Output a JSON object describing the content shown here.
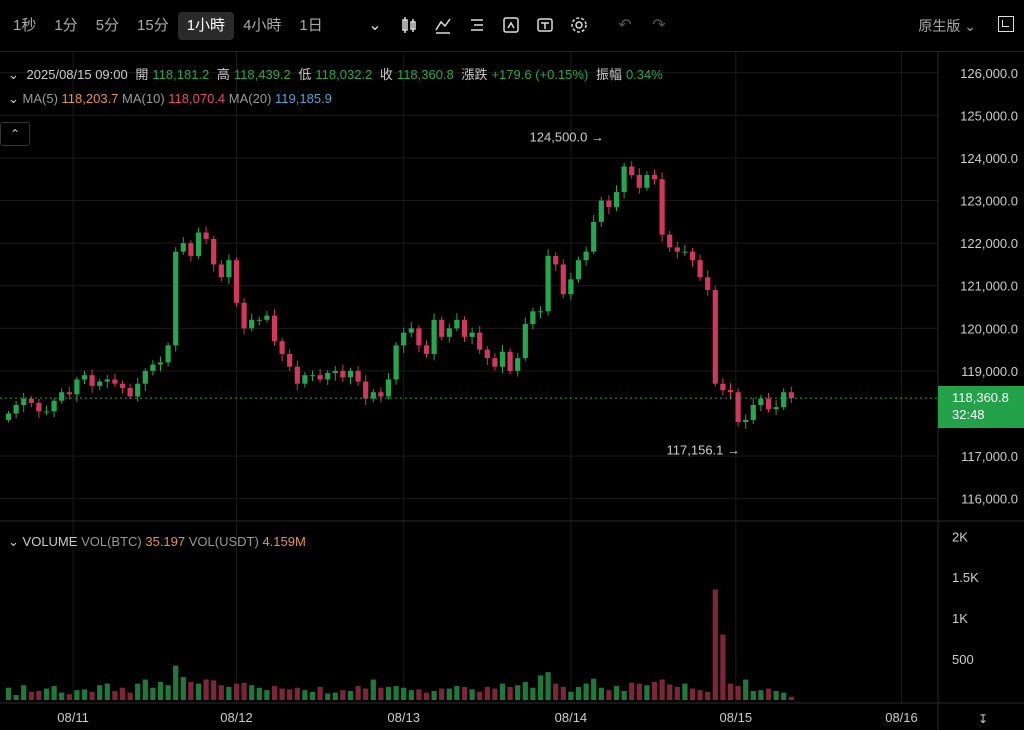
{
  "toolbar": {
    "timeframes": [
      "1秒",
      "1分",
      "5分",
      "15分",
      "1小時",
      "4小時",
      "1日"
    ],
    "active_timeframe": "1小時",
    "mode_label": "原生版"
  },
  "info": {
    "date": "2025/08/15 09:00",
    "open_label": "開",
    "open": "118,181.2",
    "high_label": "高",
    "high": "118,439.2",
    "low_label": "低",
    "low": "118,032.2",
    "close_label": "收",
    "close": "118,360.8",
    "change_label": "漲跌",
    "change": "+179.6 (+0.15%)",
    "amplitude_label": "振幅",
    "amplitude": "0.34%"
  },
  "ma": {
    "ma5_label": "MA(5)",
    "ma5": "118,203.7",
    "ma10_label": "MA(10)",
    "ma10": "118,070.4",
    "ma20_label": "MA(20)",
    "ma20": "119,185.9"
  },
  "volume": {
    "title": "VOLUME",
    "btc_label": "VOL(BTC)",
    "btc": "35.197",
    "usdt_label": "VOL(USDT)",
    "usdt": "4.159M"
  },
  "price_tag": {
    "price": "118,360.8",
    "countdown": "32:48"
  },
  "colors": {
    "up": "#25a750",
    "down": "#d2375d",
    "up_vol": "#1f7a3a",
    "down_vol": "#7e2639"
  },
  "chart_data": {
    "type": "candlestick",
    "x_ticks": [
      "08/11",
      "08/12",
      "08/13",
      "08/14",
      "08/15",
      "08/16"
    ],
    "price_ticks": [
      "126,000.0",
      "125,000.0",
      "124,000.0",
      "123,000.0",
      "122,000.0",
      "121,000.0",
      "120,000.0",
      "119,000.0",
      "117,000.0",
      "116,000.0"
    ],
    "ylim": [
      115500,
      126300
    ],
    "volume_ticks": [
      "2K",
      "1.5K",
      "1K",
      "500"
    ],
    "volume_ylim": [
      0,
      2150
    ],
    "annotations": [
      {
        "text": "124,500.0",
        "value": 124500
      },
      {
        "text": "117,156.1",
        "value": 117156.1
      }
    ],
    "last_price": 118360.8,
    "closes": [
      118000,
      118200,
      118350,
      118250,
      118050,
      118050,
      118300,
      118500,
      118450,
      118800,
      118900,
      118650,
      118750,
      118800,
      118700,
      118600,
      118400,
      118700,
      119000,
      119150,
      119200,
      119600,
      121800,
      122000,
      121700,
      122250,
      122100,
      121500,
      121200,
      121600,
      120600,
      120000,
      120200,
      120200,
      120300,
      119700,
      119400,
      119100,
      118700,
      118900,
      118900,
      118800,
      118950,
      119000,
      118850,
      119000,
      118750,
      118350,
      118500,
      118400,
      118800,
      119600,
      119900,
      120000,
      119600,
      119400,
      120200,
      119800,
      120000,
      120200,
      119800,
      119900,
      119500,
      119300,
      119100,
      119450,
      119000,
      119300,
      120100,
      120400,
      120400,
      121700,
      121500,
      120800,
      121150,
      121600,
      121800,
      122500,
      123000,
      122850,
      123200,
      123800,
      123600,
      123300,
      123600,
      123500,
      122200,
      121900,
      121800,
      121800,
      121600,
      121200,
      120900,
      118700,
      118550,
      118500,
      117800,
      117850,
      118200,
      118350,
      118100,
      118150,
      118500,
      118361
    ],
    "volumes": [
      150,
      60,
      180,
      100,
      110,
      140,
      170,
      90,
      70,
      120,
      130,
      100,
      180,
      200,
      110,
      150,
      90,
      200,
      250,
      150,
      220,
      180,
      420,
      280,
      220,
      200,
      250,
      240,
      180,
      160,
      200,
      210,
      180,
      150,
      120,
      170,
      140,
      130,
      150,
      120,
      100,
      160,
      80,
      90,
      120,
      110,
      170,
      140,
      250,
      150,
      160,
      170,
      150,
      120,
      130,
      90,
      110,
      140,
      140,
      170,
      160,
      130,
      100,
      160,
      140,
      200,
      160,
      180,
      220,
      150,
      300,
      340,
      200,
      160,
      100,
      160,
      200,
      260,
      150,
      120,
      170,
      110,
      210,
      200,
      180,
      220,
      250,
      190,
      160,
      200,
      140,
      120,
      100,
      1350,
      800,
      200,
      170,
      250,
      110,
      120,
      140,
      110,
      90,
      40
    ],
    "series": [
      {
        "name": "MA(5)",
        "value": "118,203.7"
      },
      {
        "name": "MA(10)",
        "value": "118,070.4"
      },
      {
        "name": "MA(20)",
        "value": "119,185.9"
      }
    ]
  }
}
